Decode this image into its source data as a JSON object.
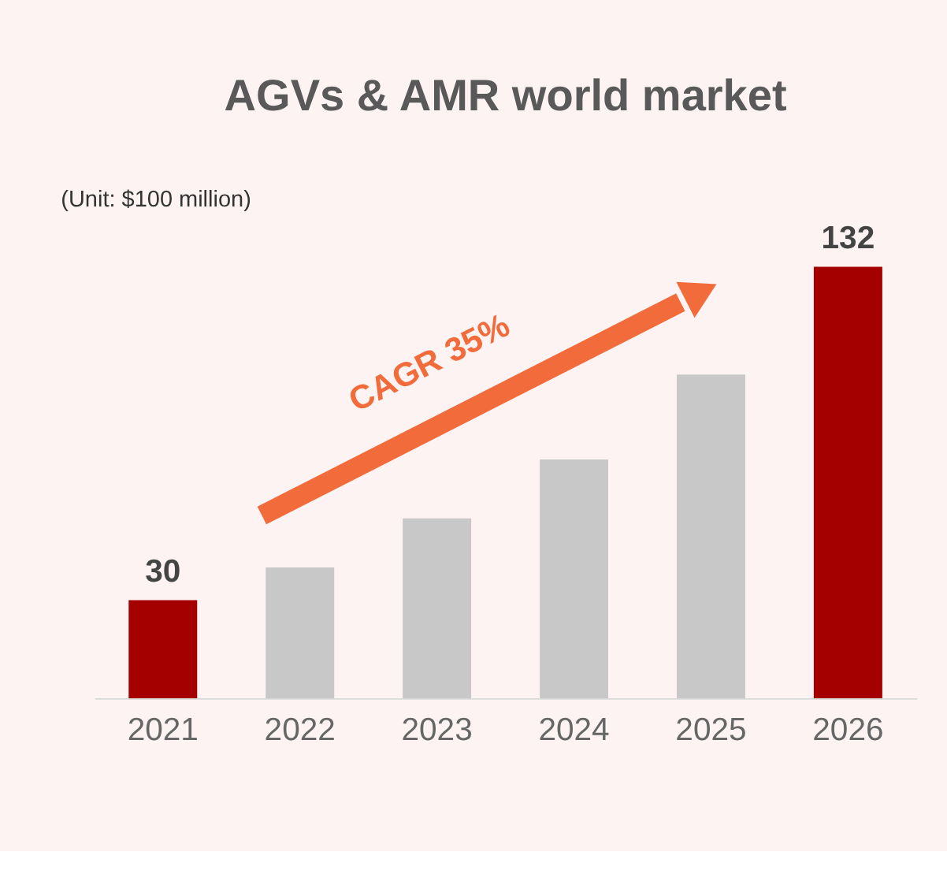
{
  "chart_data": {
    "type": "bar",
    "title": "AGVs & AMR world market",
    "categories": [
      "2021",
      "2022",
      "2023",
      "2024",
      "2025",
      "2026"
    ],
    "values": [
      30,
      40,
      55,
      73,
      99,
      132
    ],
    "value_labels": [
      "30",
      null,
      null,
      null,
      null,
      "132"
    ],
    "colors": [
      "#a50000",
      "#c8c8c8",
      "#c8c8c8",
      "#c8c8c8",
      "#c8c8c8",
      "#a50000"
    ],
    "annotations": [
      "(Unit: $100 million)",
      "CAGR 35%"
    ],
    "grid": false
  }
}
